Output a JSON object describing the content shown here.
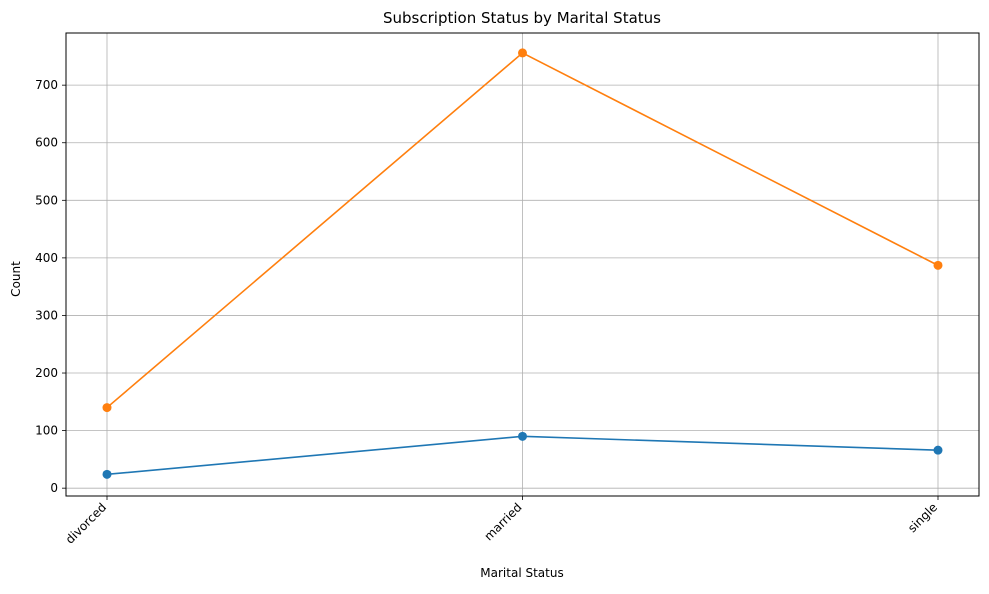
{
  "chart_data": {
    "type": "line",
    "title": "Subscription Status by Marital Status",
    "xlabel": "Marital Status",
    "ylabel": "Count",
    "categories": [
      "divorced",
      "married",
      "single"
    ],
    "series": [
      {
        "values": [
          24,
          90,
          66
        ],
        "color": "#1f77b4",
        "marker": "circle"
      },
      {
        "values": [
          140,
          756,
          387
        ],
        "color": "#ff7f0e",
        "marker": "circle"
      }
    ],
    "ylim": [
      -13.6,
      790.6
    ],
    "yticks": [
      0,
      100,
      200,
      300,
      400,
      500,
      600,
      700
    ],
    "grid": true,
    "legend": "none"
  }
}
